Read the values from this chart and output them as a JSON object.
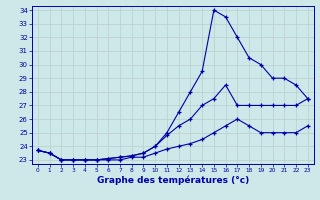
{
  "title": "",
  "xlabel": "Graphe des températures (°c)",
  "ylabel": "",
  "background_color": "#cce8e8",
  "line_color": "#0000aa",
  "grid_color": "#bbcccc",
  "xlim": [
    -0.5,
    23.5
  ],
  "ylim": [
    22.7,
    34.3
  ],
  "xticks": [
    0,
    1,
    2,
    3,
    4,
    5,
    6,
    7,
    8,
    9,
    10,
    11,
    12,
    13,
    14,
    15,
    16,
    17,
    18,
    19,
    20,
    21,
    22,
    23
  ],
  "yticks": [
    23,
    24,
    25,
    26,
    27,
    28,
    29,
    30,
    31,
    32,
    33,
    34
  ],
  "hours": [
    0,
    1,
    2,
    3,
    4,
    5,
    6,
    7,
    8,
    9,
    10,
    11,
    12,
    13,
    14,
    15,
    16,
    17,
    18,
    19,
    20,
    21,
    22,
    23
  ],
  "temp_max": [
    23.7,
    23.5,
    23.0,
    23.0,
    23.0,
    23.0,
    23.1,
    23.2,
    23.3,
    23.5,
    24.0,
    25.0,
    26.5,
    28.0,
    29.5,
    34.0,
    33.5,
    32.0,
    30.5,
    30.0,
    29.0,
    29.0,
    28.5,
    27.5
  ],
  "temp_avg": [
    23.7,
    23.5,
    23.0,
    23.0,
    23.0,
    23.0,
    23.1,
    23.2,
    23.3,
    23.5,
    24.0,
    24.8,
    25.5,
    26.0,
    27.0,
    27.5,
    28.5,
    27.0,
    27.0,
    27.0,
    27.0,
    27.0,
    27.0,
    27.5
  ],
  "temp_min": [
    23.7,
    23.5,
    23.0,
    23.0,
    23.0,
    23.0,
    23.0,
    23.0,
    23.2,
    23.2,
    23.5,
    23.8,
    24.0,
    24.2,
    24.5,
    25.0,
    25.5,
    26.0,
    25.5,
    25.0,
    25.0,
    25.0,
    25.0,
    25.5
  ],
  "xlabel_fontsize": 6.5,
  "tick_fontsize": 5.0
}
